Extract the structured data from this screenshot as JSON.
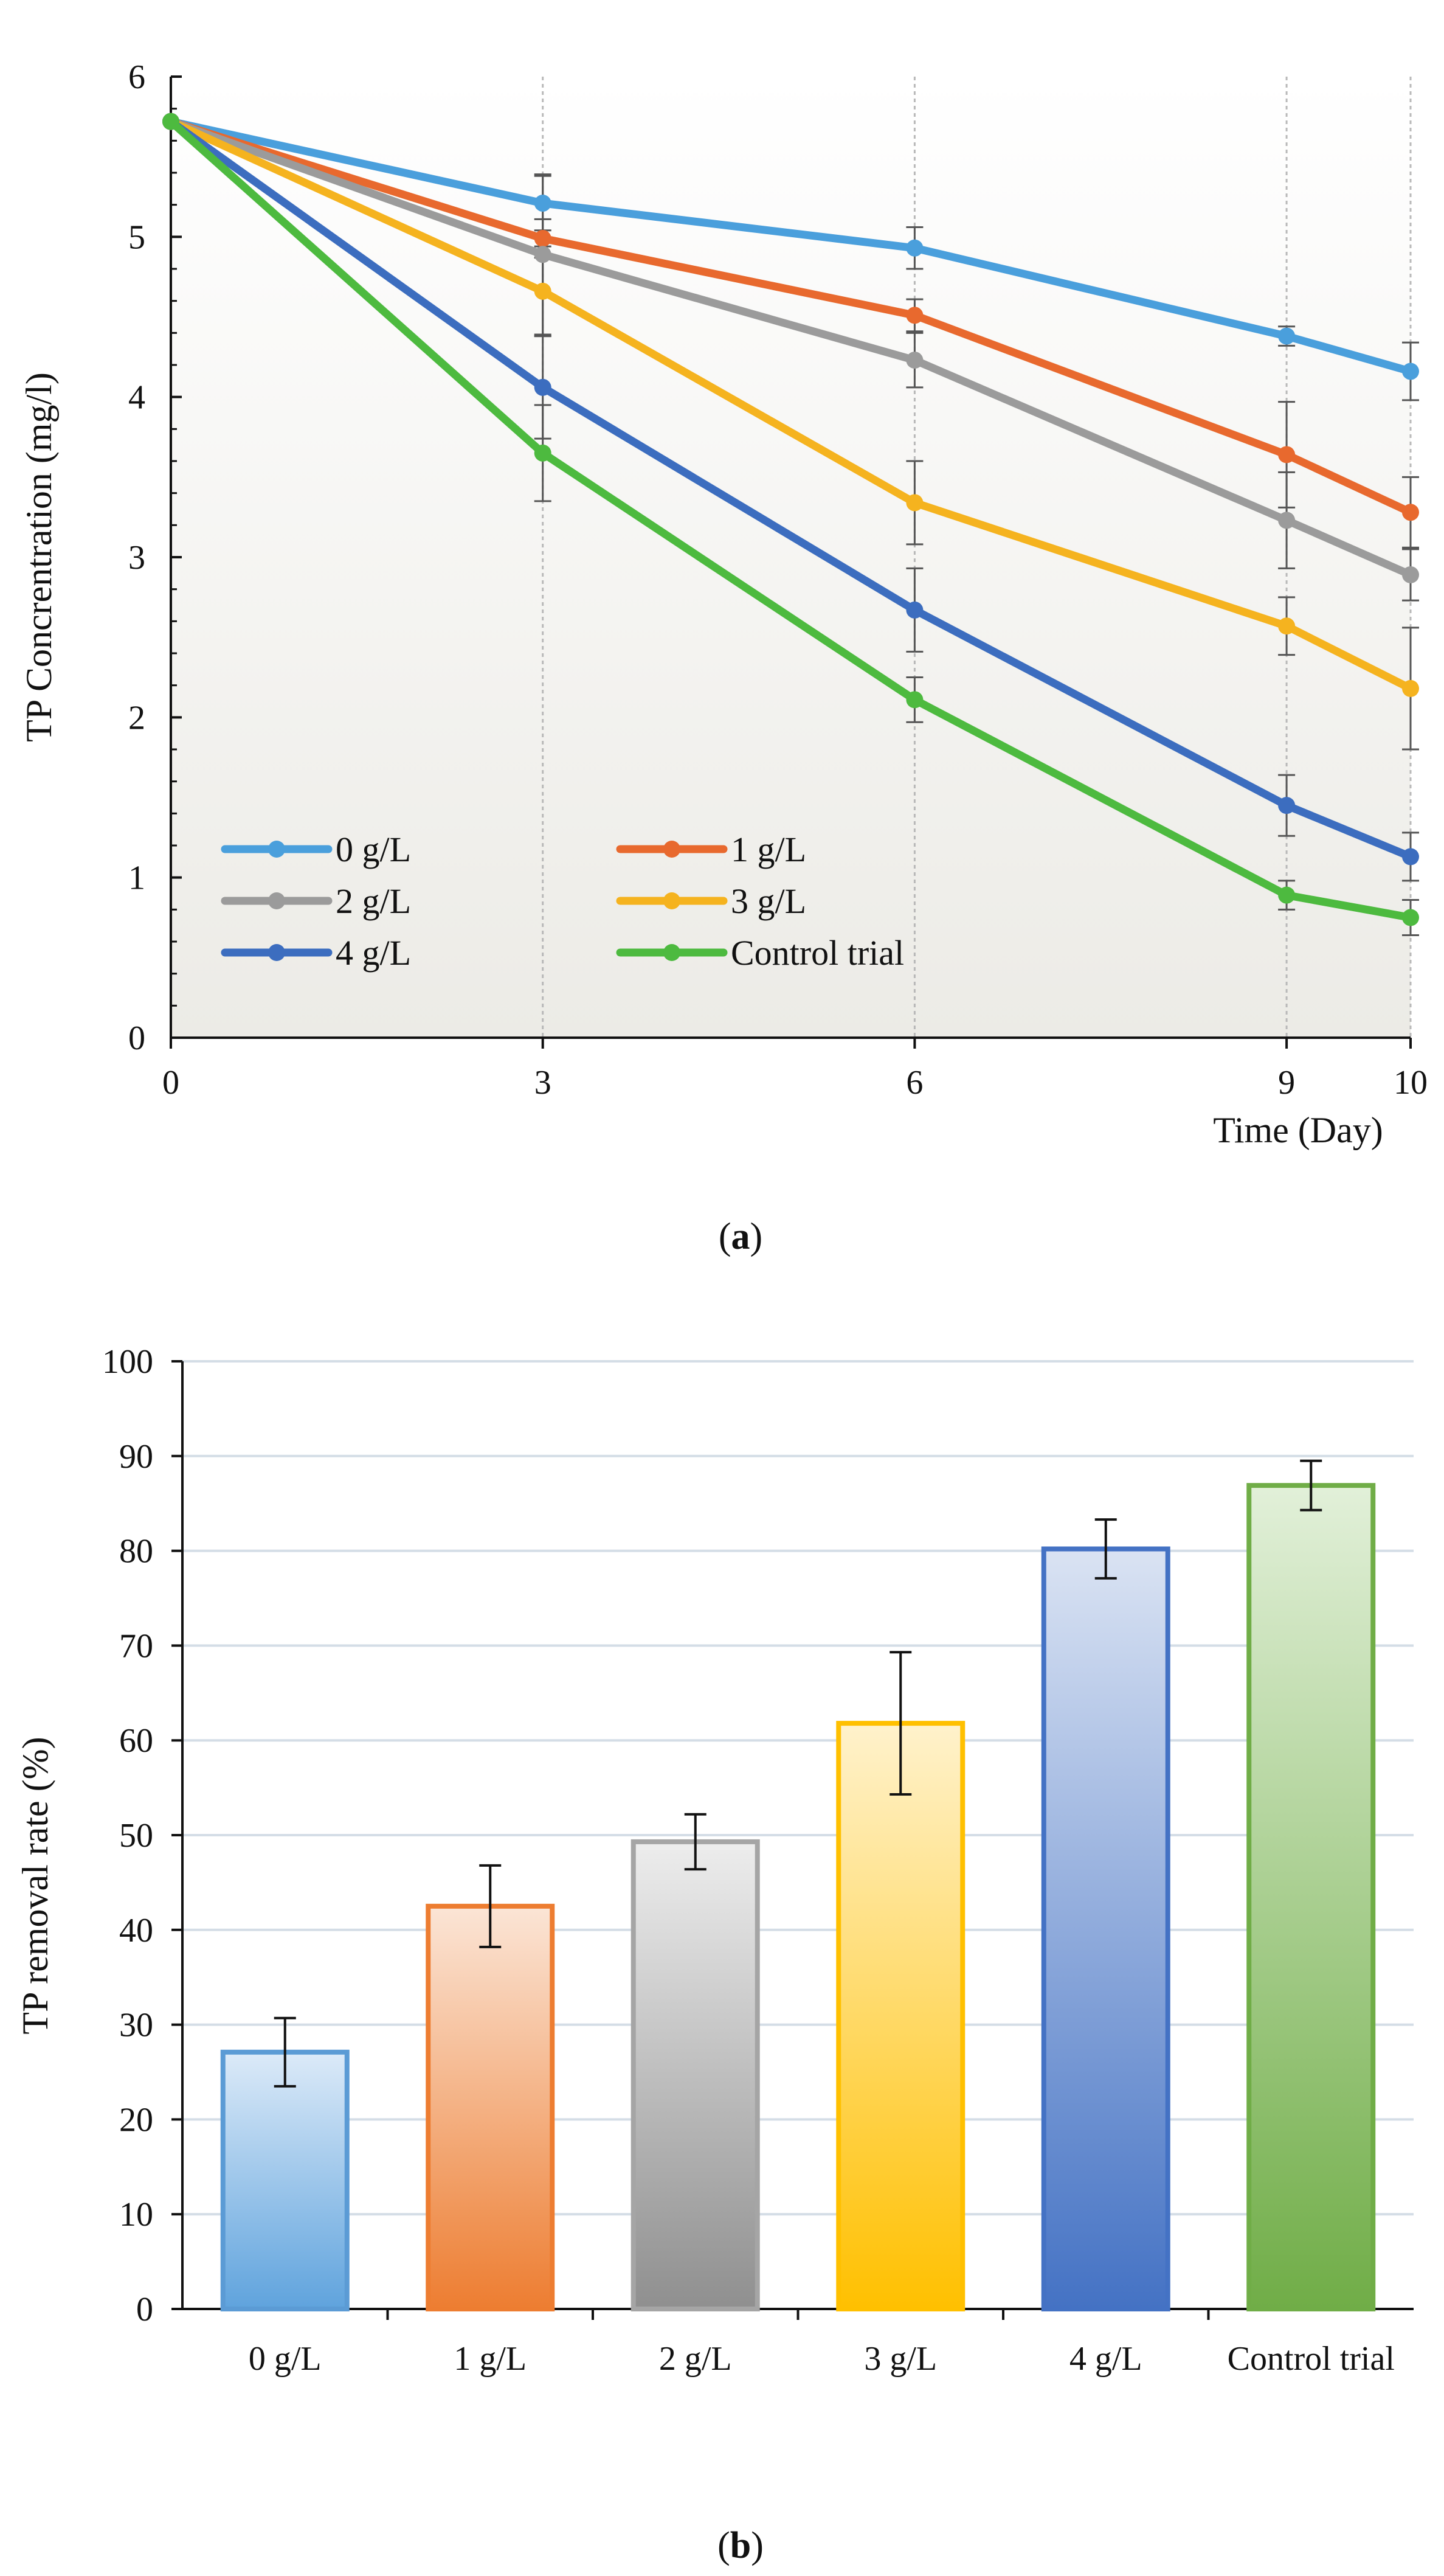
{
  "chart_data": [
    {
      "type": "line",
      "caption": "(a)",
      "caption_letter": "a",
      "xlabel": "Time (Day)",
      "ylabel": "TP Concrentration (mg/l)",
      "x": [
        0,
        3,
        6,
        9,
        10
      ],
      "x_tick_labels": [
        "0",
        "3",
        "6",
        "9",
        "10"
      ],
      "ylim": [
        0,
        6
      ],
      "y_ticks": [
        0,
        1,
        2,
        3,
        4,
        5,
        6
      ],
      "legend_position": "bottom-left inside plot",
      "series": [
        {
          "name": "0 g/L",
          "color": "#4A9FDC",
          "values": [
            5.72,
            5.21,
            4.93,
            4.38,
            4.16
          ],
          "errors": [
            0,
            0.17,
            0.13,
            0.06,
            0.18
          ]
        },
        {
          "name": "1 g/L",
          "color": "#E8692E",
          "values": [
            5.72,
            4.99,
            4.51,
            3.64,
            3.28
          ],
          "errors": [
            0,
            0.12,
            0.1,
            0.33,
            0.22
          ]
        },
        {
          "name": "2 g/L",
          "color": "#9B9B9B",
          "values": [
            5.72,
            4.89,
            4.23,
            3.23,
            2.89
          ],
          "errors": [
            0,
            0.5,
            0.17,
            0.3,
            0.16
          ]
        },
        {
          "name": "3 g/L",
          "color": "#F5B31F",
          "values": [
            5.72,
            4.66,
            3.34,
            2.57,
            2.18
          ],
          "errors": [
            0,
            0.28,
            0.26,
            0.18,
            0.38
          ]
        },
        {
          "name": "4 g/L",
          "color": "#3C6DBF",
          "values": [
            5.72,
            4.06,
            2.67,
            1.45,
            1.13
          ],
          "errors": [
            0,
            0.32,
            0.26,
            0.19,
            0.15
          ]
        },
        {
          "name": "Control trial",
          "color": "#4DBA3F",
          "values": [
            5.72,
            3.65,
            2.11,
            0.89,
            0.75
          ],
          "errors": [
            0,
            0.3,
            0.14,
            0.09,
            0.11
          ]
        }
      ]
    },
    {
      "type": "bar",
      "caption": "(b)",
      "caption_letter": "b",
      "xlabel": "",
      "ylabel": "TP removal rate (%)",
      "categories": [
        "0 g/L",
        "1 g/L",
        "2 g/L",
        "3 g/L",
        "4 g/L",
        "Control trial"
      ],
      "values": [
        27.1,
        42.5,
        49.3,
        61.8,
        80.2,
        86.9
      ],
      "errors": [
        3.6,
        4.3,
        2.9,
        7.5,
        3.1,
        2.6
      ],
      "ylim": [
        0,
        100
      ],
      "y_ticks": [
        0,
        10,
        20,
        30,
        40,
        50,
        60,
        70,
        80,
        90,
        100
      ],
      "grid": true,
      "colors": [
        {
          "top": "#DCEAF8",
          "bottom": "#5FA3DD",
          "edge": "#5B9BD5"
        },
        {
          "top": "#FBE5D6",
          "bottom": "#ED7D31",
          "edge": "#ED7D31"
        },
        {
          "top": "#EDEDED",
          "bottom": "#8F8F8F",
          "edge": "#A5A5A5"
        },
        {
          "top": "#FFF2CC",
          "bottom": "#FFC000",
          "edge": "#FFC000"
        },
        {
          "top": "#DAE3F3",
          "bottom": "#4472C4",
          "edge": "#4472C4"
        },
        {
          "top": "#E2F0D9",
          "bottom": "#70AD47",
          "edge": "#70AD47"
        }
      ]
    }
  ]
}
